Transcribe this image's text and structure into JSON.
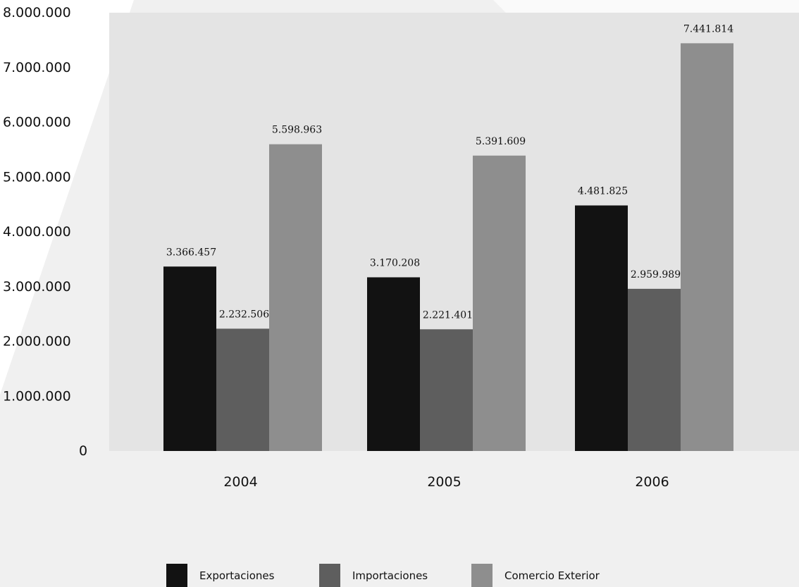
{
  "chart_data": {
    "type": "bar",
    "categories": [
      "2004",
      "2005",
      "2006"
    ],
    "series": [
      {
        "name": "Exportaciones",
        "color": "#121212",
        "values": [
          3366457,
          3170208,
          4481825
        ],
        "labels": [
          "3.366.457",
          "3.170.208",
          "4.481.825"
        ]
      },
      {
        "name": "Importaciones",
        "color": "#5e5e5e",
        "values": [
          2232506,
          2221401,
          2959989
        ],
        "labels": [
          "2.232.506",
          "2.221.401",
          "2.959.989"
        ]
      },
      {
        "name": "Comercio Exterior",
        "color": "#8e8e8e",
        "values": [
          5598963,
          5391609,
          7441814
        ],
        "labels": [
          "5.598.963",
          "5.391.609",
          "7.441.814"
        ]
      }
    ],
    "ylim": [
      0,
      8000000
    ],
    "yticks": [
      0,
      1000000,
      2000000,
      3000000,
      4000000,
      5000000,
      6000000,
      7000000,
      8000000
    ],
    "ytick_labels": [
      "0",
      "1.000.000",
      "2.000.000",
      "3.000.000",
      "4.000.000",
      "5.000.000",
      "6.000.000",
      "7.000.000",
      "8.000.000"
    ],
    "grid": false,
    "legend_position": "bottom",
    "plot_background": "#e4e4e4",
    "page_background": "#f0f0f0"
  }
}
